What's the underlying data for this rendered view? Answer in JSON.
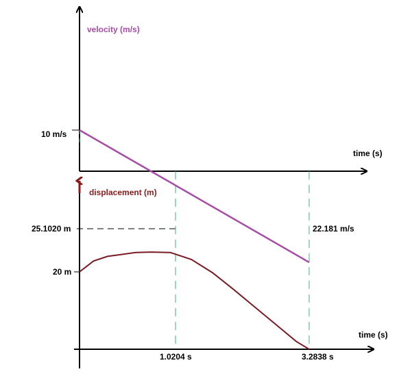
{
  "chart_data": [
    {
      "type": "line",
      "ylabel": "velocity (m/s)",
      "xlabel": "time (s)",
      "annotations": [
        "10 m/s",
        "22.181 m/s"
      ],
      "series": [
        {
          "x": [
            0,
            1.0204,
            3.2838
          ],
          "y": [
            10,
            0,
            -22.181
          ]
        }
      ],
      "colors": {
        "line": "#a64ca6",
        "label": "#a64ca6"
      },
      "grid": false
    },
    {
      "type": "line",
      "ylabel": "displacement (m)",
      "xlabel": "time (s)",
      "annotations": [
        "25.1020 m",
        "20 m"
      ],
      "tick_labels": [
        "1.0204 s",
        "3.2838 s"
      ],
      "series": [
        {
          "x": [
            0,
            0.2,
            0.4,
            0.6,
            0.8,
            1.0204,
            1.3,
            1.6,
            1.9,
            2.2,
            2.5,
            2.8,
            3.1,
            3.2838
          ],
          "y": [
            20,
            22.8,
            24.0,
            24.5,
            25.0,
            25.102,
            25.0,
            23.2,
            19.8,
            15.5,
            11.0,
            6.5,
            2.0,
            0
          ]
        }
      ],
      "colors": {
        "line": "#7a1a22",
        "label": "#8b1a1a",
        "guides": "#3cb371"
      },
      "grid": false
    }
  ]
}
